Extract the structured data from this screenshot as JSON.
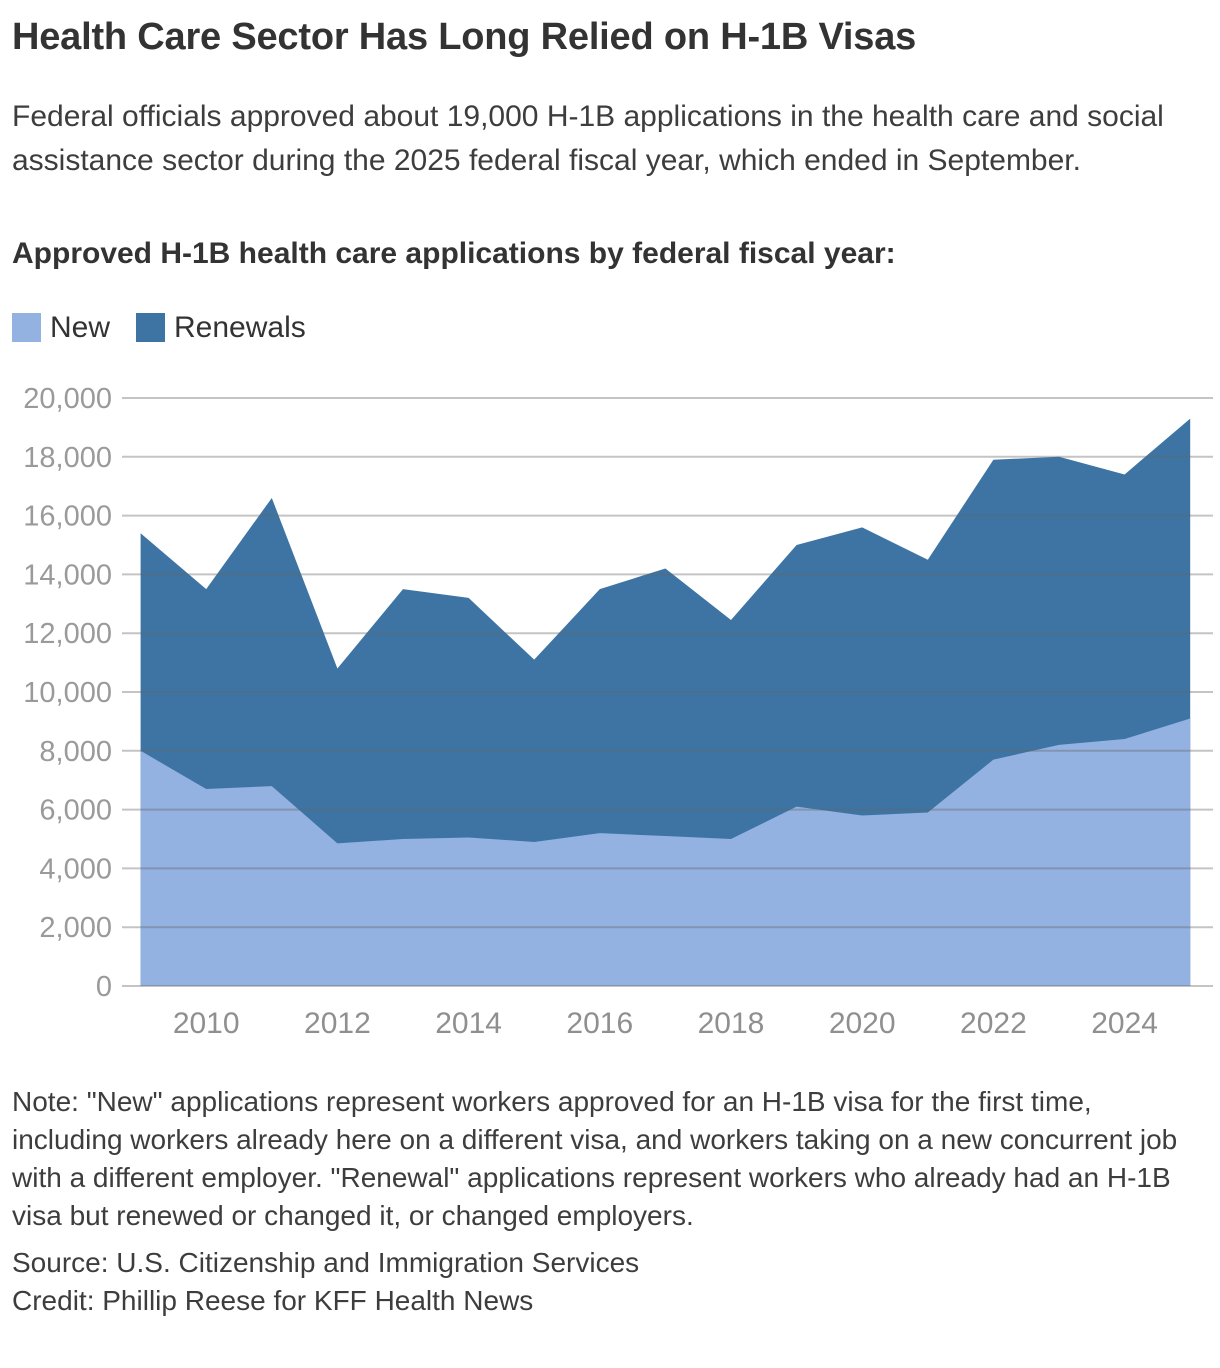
{
  "header": {
    "title": "Health Care Sector Has Long Relied on H-1B Visas",
    "subtitle": "Federal officials approved about 19,000 H-1B applications in the health care and social assistance sector during the 2025 federal fiscal year, which ended in September."
  },
  "chart": {
    "heading": "Approved H-1B health care applications by federal fiscal year:"
  },
  "chart_data": {
    "type": "area",
    "stacked": true,
    "title": "Approved H-1B health care applications by federal fiscal year",
    "x": [
      2009,
      2010,
      2011,
      2012,
      2013,
      2014,
      2015,
      2016,
      2017,
      2018,
      2019,
      2020,
      2021,
      2022,
      2023,
      2024,
      2025
    ],
    "series": [
      {
        "name": "New",
        "color": "#93b2e1",
        "values": [
          8000,
          6700,
          6800,
          4850,
          5000,
          5050,
          4900,
          5200,
          5100,
          5000,
          6100,
          5800,
          5900,
          7700,
          8200,
          8400,
          9100
        ]
      },
      {
        "name": "Renewals",
        "color": "#3d74a4",
        "values": [
          7400,
          6800,
          9800,
          5950,
          8500,
          8150,
          6200,
          8300,
          9100,
          7450,
          8900,
          9800,
          8600,
          10200,
          9800,
          9000,
          10200
        ]
      }
    ],
    "stacked_totals": [
      15400,
      13500,
      16600,
      10800,
      13500,
      13200,
      11100,
      13500,
      14200,
      12450,
      15000,
      15600,
      14500,
      17900,
      18000,
      17400,
      19300
    ],
    "ylim": [
      0,
      20000
    ],
    "ytick_step": 2000,
    "xticks": [
      2010,
      2012,
      2014,
      2016,
      2018,
      2020,
      2022,
      2024
    ],
    "grid": true,
    "grid_color": "#c9c9c9",
    "legend_position": "top-left"
  },
  "footer": {
    "note": "Note: \"New\" applications represent workers approved for an H-1B visa for the first time, including workers already here on a different visa, and workers taking on a new concurrent job with a different employer. \"Renewal\" applications represent workers who already had an H-1B visa but renewed or changed it, or changed employers.",
    "source": "Source: U.S. Citizenship and Immigration Services",
    "credit": "Credit: Phillip Reese for KFF Health News"
  }
}
